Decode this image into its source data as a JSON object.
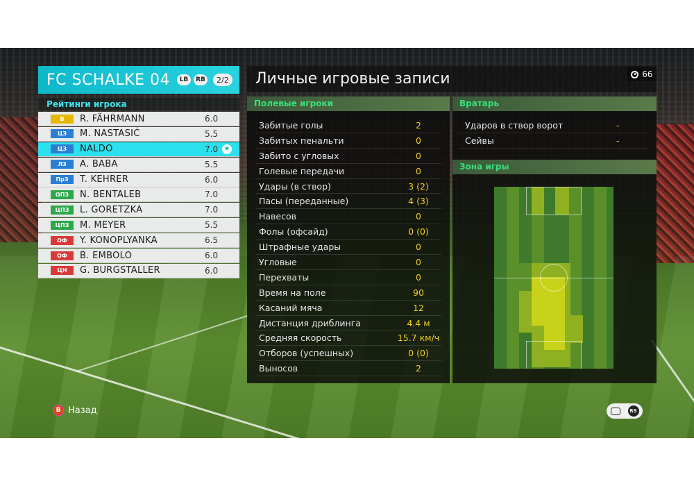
{
  "team": {
    "name": "FC SCHALKE 04",
    "lb": "LB",
    "rb": "RB",
    "page": "2/2"
  },
  "ratings_title": "Рейтинги игрока",
  "players": [
    {
      "pos": "В",
      "pos_color": "#e6b800",
      "name": "R. FÄHRMANN",
      "rating": "6.0",
      "selected": false
    },
    {
      "pos": "ЦЗ",
      "pos_color": "#2a7fd4",
      "name": "M. NASTASIĆ",
      "rating": "5.5",
      "selected": false
    },
    {
      "pos": "ЦЗ",
      "pos_color": "#2a7fd4",
      "name": "NALDO",
      "rating": "7.0",
      "selected": true
    },
    {
      "pos": "ЛЗ",
      "pos_color": "#2a7fd4",
      "name": "A. BABA",
      "rating": "5.5",
      "selected": false
    },
    {
      "pos": "ПрЗ",
      "pos_color": "#2a7fd4",
      "name": "T. KEHRER",
      "rating": "6.0",
      "selected": false
    },
    {
      "pos": "ОПЗ",
      "pos_color": "#2aa84a",
      "name": "N. BENTALEB",
      "rating": "7.0",
      "selected": false
    },
    {
      "pos": "ЦПЗ",
      "pos_color": "#2aa84a",
      "name": "L. GORETZKA",
      "rating": "7.0",
      "selected": false
    },
    {
      "pos": "ЦПЗ",
      "pos_color": "#2aa84a",
      "name": "M. MEYER",
      "rating": "5.5",
      "selected": false
    },
    {
      "pos": "ОФ",
      "pos_color": "#d83a3a",
      "name": "Y. KONOPLYANKA",
      "rating": "6.5",
      "selected": false
    },
    {
      "pos": "ОФ",
      "pos_color": "#d83a3a",
      "name": "B. EMBOLO",
      "rating": "6.0",
      "selected": false
    },
    {
      "pos": "ЦН",
      "pos_color": "#d83a3a",
      "name": "G. BURGSTALLER",
      "rating": "6.0",
      "selected": false
    }
  ],
  "main_title": "Личные игровые записи",
  "timer": "66",
  "field_section": "Полевые игроки",
  "stats": [
    {
      "label": "Забитые голы",
      "value": "2"
    },
    {
      "label": "Забитых пенальти",
      "value": "0"
    },
    {
      "label": "Забито с угловых",
      "value": "0"
    },
    {
      "label": "Голевые передачи",
      "value": "0"
    },
    {
      "label": "Удары (в створ)",
      "value": "3 (2)"
    },
    {
      "label": "Пасы (переданные)",
      "value": "4 (3)"
    },
    {
      "label": "Навесов",
      "value": "0"
    },
    {
      "label": "Фолы (офсайд)",
      "value": "0 (0)"
    },
    {
      "label": "Штрафные удары",
      "value": "0"
    },
    {
      "label": "Угловые",
      "value": "0"
    },
    {
      "label": "Перехваты",
      "value": "0"
    },
    {
      "label": "Время на поле",
      "value": "90"
    },
    {
      "label": "Касаний мяча",
      "value": "12"
    },
    {
      "label": "Дистанция дриблинга",
      "value": "4.4 м"
    },
    {
      "label": "Средняя скорость",
      "value": "15.7 км/ч"
    },
    {
      "label": "Отборов (успешных)",
      "value": "0 (0)"
    },
    {
      "label": "Выносов",
      "value": "2"
    }
  ],
  "gk_section": "Вратарь",
  "gk_stats": [
    {
      "label": "Ударов в створ ворот",
      "value": "-"
    },
    {
      "label": "Сейвы",
      "value": "-"
    }
  ],
  "zone_section": "Зона игры",
  "heatmap_colors": {
    "base": "#3f7a2c",
    "mid": "#5a8f2a",
    "warm": "#8fb020",
    "hot": "#c9d21a"
  },
  "controls": {
    "back_key": "B",
    "back_label": "Назад",
    "rs": "RS"
  }
}
